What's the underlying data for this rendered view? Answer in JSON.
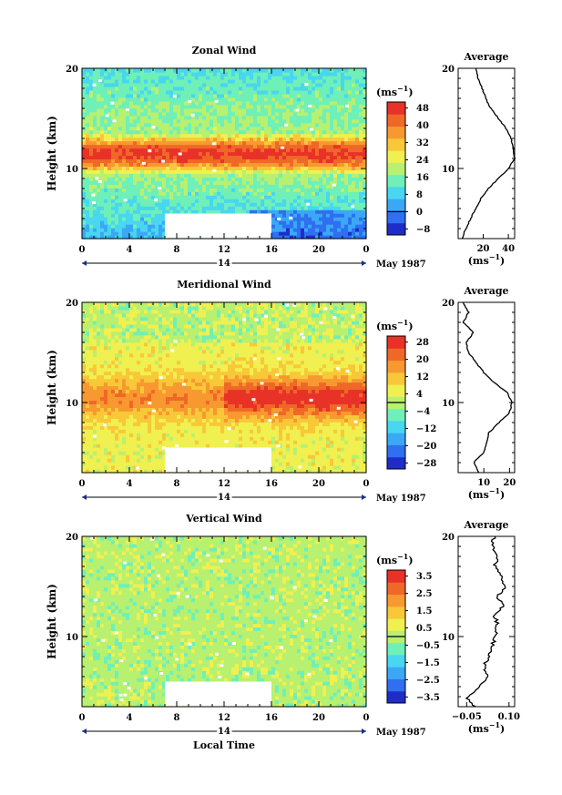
{
  "figure": {
    "xlabel": "Local Time",
    "date_label": "May 1987",
    "day_label": "14",
    "average_title": "Average",
    "unit_label": "(ms⁻¹)",
    "unit_base": "(ms",
    "unit_exp": "−1",
    "unit_close": ")"
  },
  "chart_data": [
    {
      "type": "heatmap",
      "title": "Zonal Wind",
      "ylabel": "Height (km)",
      "x_ticks": [
        "0",
        "4",
        "8",
        "12",
        "16",
        "20",
        "0"
      ],
      "y_ticks": [
        "10",
        "20"
      ],
      "xlim": [
        0,
        24
      ],
      "ylim": [
        3,
        20
      ],
      "data_gap": {
        "x": [
          7,
          16
        ],
        "y": [
          3,
          5.5
        ]
      },
      "colorbar": {
        "levels": [
          -8,
          0,
          8,
          16,
          24,
          32,
          40,
          48
        ],
        "labels": [
          "48",
          "40",
          "32",
          "24",
          "16",
          "8",
          "0",
          "−8"
        ],
        "zero_line": 0,
        "colors": [
          "#1e2dc8",
          "#2f6ff0",
          "#3aa8f5",
          "#48d6f0",
          "#6ef0b8",
          "#b8f070",
          "#f0f050",
          "#f8c838",
          "#f89830",
          "#f06828",
          "#e83228"
        ]
      },
      "field": {
        "jet_height_km": 11.5,
        "jet_speed": 50,
        "surface_speed": 4,
        "top_speed": 10
      },
      "average": {
        "xlim": [
          0,
          45
        ],
        "x_ticks": [
          "20",
          "40"
        ],
        "profile": [
          [
            3,
            3
          ],
          [
            4,
            6
          ],
          [
            5,
            10
          ],
          [
            6,
            14
          ],
          [
            7,
            18
          ],
          [
            8,
            24
          ],
          [
            9,
            32
          ],
          [
            10,
            40
          ],
          [
            11,
            45
          ],
          [
            12,
            44
          ],
          [
            13,
            42
          ],
          [
            14,
            38
          ],
          [
            15,
            32
          ],
          [
            16,
            26
          ],
          [
            17,
            22
          ],
          [
            18,
            19
          ],
          [
            19,
            16
          ],
          [
            20,
            14
          ]
        ]
      }
    },
    {
      "type": "heatmap",
      "title": "Meridional Wind",
      "ylabel": "Height (km)",
      "x_ticks": [
        "0",
        "4",
        "8",
        "12",
        "16",
        "20",
        "0"
      ],
      "y_ticks": [
        "10",
        "20"
      ],
      "xlim": [
        0,
        24
      ],
      "ylim": [
        3,
        20
      ],
      "data_gap": {
        "x": [
          7,
          16
        ],
        "y": [
          3,
          5.5
        ]
      },
      "colorbar": {
        "levels": [
          -28,
          -20,
          -12,
          -4,
          4,
          12,
          20,
          28
        ],
        "labels": [
          "28",
          "20",
          "12",
          "4",
          "−4",
          "−12",
          "−20",
          "−28"
        ],
        "zero_line": 0,
        "colors": [
          "#1e2dc8",
          "#2f6ff0",
          "#3aa8f5",
          "#48d6f0",
          "#6ef0b8",
          "#b8f070",
          "#f0f050",
          "#f8c838",
          "#f89830",
          "#f06828",
          "#e83228"
        ]
      },
      "field": {
        "jet_height_km": 10.5,
        "jet_speed": 26,
        "surface_speed": 6,
        "top_speed": -6
      },
      "average": {
        "xlim": [
          0,
          22
        ],
        "x_ticks": [
          "10",
          "20"
        ],
        "profile": [
          [
            3,
            8
          ],
          [
            4,
            6
          ],
          [
            5,
            10
          ],
          [
            6,
            11
          ],
          [
            7,
            12
          ],
          [
            8,
            16
          ],
          [
            9,
            20
          ],
          [
            10,
            21
          ],
          [
            11,
            19
          ],
          [
            12,
            14
          ],
          [
            13,
            10
          ],
          [
            14,
            7
          ],
          [
            15,
            4
          ],
          [
            16,
            3
          ],
          [
            17,
            6
          ],
          [
            18,
            2
          ],
          [
            19,
            4
          ],
          [
            20,
            2
          ]
        ]
      }
    },
    {
      "type": "heatmap",
      "title": "Vertical Wind",
      "ylabel": "Height (km)",
      "x_ticks": [
        "0",
        "4",
        "8",
        "12",
        "16",
        "20",
        "0"
      ],
      "y_ticks": [
        "10",
        "20"
      ],
      "xlim": [
        0,
        24
      ],
      "ylim": [
        3,
        20
      ],
      "data_gap": {
        "x": [
          7,
          16
        ],
        "y": [
          3,
          5.5
        ]
      },
      "colorbar": {
        "levels": [
          -3.5,
          -2.5,
          -1.5,
          -0.5,
          0.5,
          1.5,
          2.5,
          3.5
        ],
        "labels": [
          "3.5",
          "2.5",
          "1.5",
          "0.5",
          "−0.5",
          "−1.5",
          "−2.5",
          "−3.5"
        ],
        "zero_line": 0,
        "colors": [
          "#1e2dc8",
          "#2f6ff0",
          "#3aa8f5",
          "#48d6f0",
          "#6ef0b8",
          "#b8f070",
          "#f0f050",
          "#f8c838",
          "#f89830",
          "#f06828",
          "#e83228"
        ]
      },
      "field": {
        "jet_height_km": 10,
        "jet_speed": 0.3,
        "surface_speed": 0,
        "top_speed": 0.2
      },
      "average": {
        "xlim": [
          -0.08,
          0.12
        ],
        "x_ticks": [
          "−0.05",
          "0.10"
        ],
        "profile": [
          [
            3,
            -0.02
          ],
          [
            4,
            -0.05
          ],
          [
            5,
            0.0
          ],
          [
            6,
            0.02
          ],
          [
            7,
            0.01
          ],
          [
            8,
            0.03
          ],
          [
            9,
            0.04
          ],
          [
            10,
            0.05
          ],
          [
            11,
            0.06
          ],
          [
            12,
            0.05
          ],
          [
            13,
            0.08
          ],
          [
            14,
            0.06
          ],
          [
            15,
            0.09
          ],
          [
            16,
            0.07
          ],
          [
            17,
            0.05
          ],
          [
            18,
            0.06
          ],
          [
            19,
            0.04
          ],
          [
            20,
            0.05
          ]
        ]
      }
    }
  ]
}
